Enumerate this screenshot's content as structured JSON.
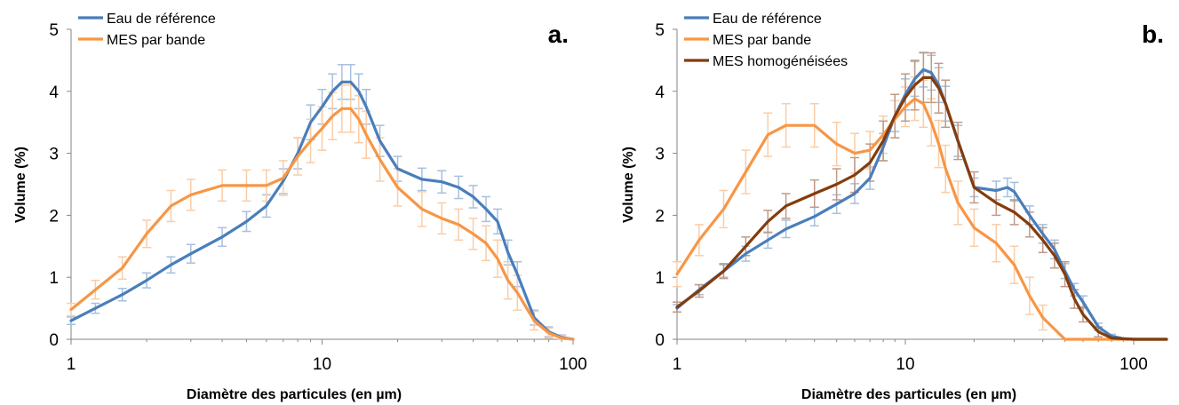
{
  "chart_data": [
    {
      "type": "line",
      "panel_label": "a.",
      "xlabel": "Diamètre des particules (en µm)",
      "ylabel": "Volume (%)",
      "x_scale": "log",
      "xlim": [
        1,
        100
      ],
      "ylim": [
        0,
        5
      ],
      "x_ticks": [
        "1",
        "10",
        "100"
      ],
      "y_ticks": [
        "0",
        "1",
        "2",
        "3",
        "4",
        "5"
      ],
      "grid": false,
      "legend_position": "top-left",
      "series": [
        {
          "name": "Eau de référence",
          "color": "#4a7ebb",
          "err_color": "#a7c0dd",
          "x": [
            1,
            1.25,
            1.6,
            2,
            2.5,
            3,
            4,
            5,
            6,
            7,
            8,
            9,
            10,
            11,
            12,
            13,
            14,
            15,
            17,
            20,
            25,
            30,
            35,
            40,
            45,
            50,
            55,
            60,
            70,
            80,
            90,
            100
          ],
          "y": [
            0.3,
            0.5,
            0.72,
            0.95,
            1.2,
            1.38,
            1.65,
            1.9,
            2.15,
            2.55,
            3.0,
            3.5,
            3.75,
            4.0,
            4.15,
            4.15,
            4.0,
            3.75,
            3.2,
            2.75,
            2.58,
            2.54,
            2.45,
            2.3,
            2.1,
            1.9,
            1.4,
            1.05,
            0.35,
            0.12,
            0.03,
            0
          ],
          "err": [
            0.06,
            0.08,
            0.1,
            0.12,
            0.13,
            0.15,
            0.15,
            0.16,
            0.18,
            0.2,
            0.25,
            0.28,
            0.28,
            0.28,
            0.28,
            0.28,
            0.28,
            0.28,
            0.25,
            0.2,
            0.18,
            0.18,
            0.18,
            0.18,
            0.2,
            0.2,
            0.2,
            0.2,
            0.12,
            0.08,
            0.04,
            0
          ]
        },
        {
          "name": "MES par bande",
          "color": "#f79646",
          "err_color": "#fbcda6",
          "x": [
            1,
            1.25,
            1.6,
            2,
            2.5,
            3,
            4,
            5,
            6,
            7,
            8,
            9,
            10,
            11,
            12,
            13,
            14,
            15,
            17,
            20,
            25,
            30,
            35,
            40,
            45,
            50,
            55,
            60,
            70,
            80,
            90,
            100
          ],
          "y": [
            0.48,
            0.8,
            1.15,
            1.7,
            2.15,
            2.33,
            2.48,
            2.48,
            2.48,
            2.6,
            2.95,
            3.2,
            3.4,
            3.6,
            3.72,
            3.72,
            3.55,
            3.3,
            2.9,
            2.45,
            2.1,
            1.95,
            1.85,
            1.7,
            1.55,
            1.3,
            0.95,
            0.75,
            0.3,
            0.1,
            0.02,
            0
          ],
          "err": [
            0.1,
            0.15,
            0.18,
            0.22,
            0.25,
            0.25,
            0.25,
            0.25,
            0.25,
            0.28,
            0.3,
            0.35,
            0.35,
            0.38,
            0.38,
            0.38,
            0.38,
            0.38,
            0.35,
            0.3,
            0.28,
            0.25,
            0.25,
            0.25,
            0.28,
            0.3,
            0.3,
            0.28,
            0.15,
            0.08,
            0.04,
            0
          ]
        }
      ]
    },
    {
      "type": "line",
      "panel_label": "b.",
      "xlabel": "Diamètre des particules (en µm)",
      "ylabel": "Volume (%)",
      "x_scale": "log",
      "xlim": [
        1,
        150
      ],
      "ylim": [
        0,
        5
      ],
      "x_ticks": [
        "1",
        "10",
        "100"
      ],
      "y_ticks": [
        "0",
        "1",
        "2",
        "3",
        "4",
        "5"
      ],
      "grid": false,
      "legend_position": "top-left",
      "series": [
        {
          "name": "Eau de référence",
          "color": "#4a7ebb",
          "err_color": "#a7c0dd",
          "x": [
            1,
            1.25,
            1.6,
            2,
            2.5,
            3,
            4,
            5,
            6,
            7,
            8,
            9,
            10,
            11,
            12,
            13,
            14,
            15,
            17,
            20,
            25,
            28,
            30,
            35,
            40,
            45,
            50,
            55,
            60,
            70,
            80,
            90,
            100,
            150
          ],
          "y": [
            0.5,
            0.8,
            1.1,
            1.38,
            1.6,
            1.78,
            1.98,
            2.18,
            2.35,
            2.6,
            3.1,
            3.6,
            3.95,
            4.2,
            4.35,
            4.3,
            4.1,
            3.8,
            3.2,
            2.45,
            2.4,
            2.45,
            2.38,
            2.0,
            1.7,
            1.45,
            1.1,
            0.8,
            0.6,
            0.2,
            0.05,
            0.01,
            0,
            0
          ],
          "err": [
            0.06,
            0.08,
            0.1,
            0.12,
            0.13,
            0.14,
            0.15,
            0.15,
            0.16,
            0.18,
            0.22,
            0.25,
            0.25,
            0.28,
            0.28,
            0.28,
            0.28,
            0.28,
            0.25,
            0.15,
            0.15,
            0.15,
            0.15,
            0.15,
            0.15,
            0.15,
            0.12,
            0.1,
            0.1,
            0.06,
            0.03,
            0.01,
            0,
            0
          ]
        },
        {
          "name": "MES par bande",
          "color": "#f79646",
          "err_color": "#fbcda6",
          "x": [
            1,
            1.25,
            1.6,
            2,
            2.5,
            3,
            4,
            5,
            6,
            7,
            8,
            9,
            10,
            11,
            12,
            13,
            14,
            15,
            17,
            20,
            25,
            30,
            35,
            40,
            50,
            60,
            70,
            100,
            150
          ],
          "y": [
            1.05,
            1.6,
            2.1,
            2.7,
            3.3,
            3.45,
            3.45,
            3.15,
            3.0,
            3.05,
            3.3,
            3.55,
            3.75,
            3.88,
            3.8,
            3.5,
            3.15,
            2.75,
            2.2,
            1.8,
            1.55,
            1.2,
            0.7,
            0.35,
            0,
            0,
            0,
            0,
            0
          ],
          "err": [
            0.2,
            0.25,
            0.3,
            0.35,
            0.35,
            0.35,
            0.35,
            0.35,
            0.32,
            0.3,
            0.3,
            0.3,
            0.32,
            0.35,
            0.38,
            0.38,
            0.38,
            0.38,
            0.35,
            0.3,
            0.3,
            0.3,
            0.3,
            0.2,
            0,
            0,
            0,
            0,
            0
          ]
        },
        {
          "name": "MES homogénéisées",
          "color": "#843c0c",
          "err_color": "#c19a86",
          "x": [
            1,
            1.25,
            1.6,
            2,
            2.5,
            3,
            4,
            5,
            6,
            7,
            8,
            9,
            10,
            11,
            12,
            13,
            14,
            15,
            17,
            20,
            25,
            30,
            35,
            40,
            45,
            50,
            55,
            60,
            70,
            80,
            100,
            150
          ],
          "y": [
            0.52,
            0.78,
            1.1,
            1.5,
            1.9,
            2.15,
            2.35,
            2.5,
            2.65,
            2.85,
            3.2,
            3.6,
            3.9,
            4.1,
            4.22,
            4.22,
            4.05,
            3.8,
            3.2,
            2.45,
            2.2,
            2.05,
            1.85,
            1.6,
            1.35,
            1.05,
            0.65,
            0.4,
            0.12,
            0.02,
            0,
            0
          ],
          "err": [
            0.08,
            0.1,
            0.12,
            0.15,
            0.18,
            0.2,
            0.22,
            0.25,
            0.28,
            0.3,
            0.32,
            0.35,
            0.38,
            0.4,
            0.4,
            0.4,
            0.4,
            0.38,
            0.3,
            0.25,
            0.2,
            0.2,
            0.2,
            0.2,
            0.2,
            0.2,
            0.15,
            0.12,
            0.08,
            0.03,
            0,
            0
          ]
        }
      ]
    }
  ]
}
